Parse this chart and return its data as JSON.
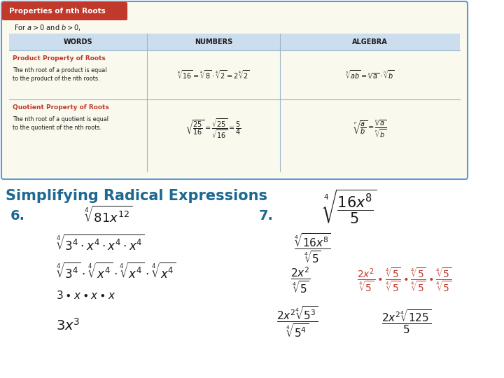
{
  "bg_color": "#ffffff",
  "title": "Simplifying Radical Expressions",
  "title_color": "#1f6891",
  "title_fontsize": 15,
  "box_bg": "#faf9ee",
  "box_border": "#5b9bd5",
  "box_header_bg": "#c0392b",
  "box_header_text": "Properties of nth Roots",
  "table_header_bg": "#ccdded",
  "red_color": "#c0392b",
  "dark_color": "#1a1a1a",
  "blue_color": "#1f6891",
  "problem6_label": "6.",
  "problem6_expr": "$\\sqrt[4]{81x^{12}}$",
  "problem7_label": "7.",
  "problem7_expr": "$\\sqrt[4]{\\dfrac{16x^8}{5}}$",
  "step6_1": "$\\sqrt[4]{3^4 \\cdot x^4 \\cdot x^4 \\cdot x^4}$",
  "step6_2": "$\\sqrt[4]{3^4} \\cdot \\sqrt[4]{x^4} \\cdot \\sqrt[4]{x^4} \\cdot \\sqrt[4]{x^4}$",
  "step6_3": "$3 \\bullet x \\bullet x \\bullet x$",
  "step6_4": "$3x^3$",
  "step7_1": "$\\dfrac{\\sqrt[4]{16x^8}}{\\sqrt[4]{5}}$",
  "step7_2_left": "$\\dfrac{2x^2}{\\sqrt[4]{5}}$",
  "step7_2_right": "$\\dfrac{2x^2}{\\sqrt[4]{5}} \\bullet \\dfrac{\\sqrt[4]{5}}{\\sqrt[4]{5}} \\bullet \\dfrac{\\sqrt[4]{5}}{\\sqrt[4]{5}} \\bullet \\dfrac{\\sqrt[4]{5}}{\\sqrt[4]{5}}$",
  "step7_3_left": "$\\dfrac{2x^2\\sqrt[4]{5^3}}{\\sqrt[4]{5^4}}$",
  "step7_3_right": "$\\dfrac{2x^2\\sqrt[4]{125}}{5}$"
}
